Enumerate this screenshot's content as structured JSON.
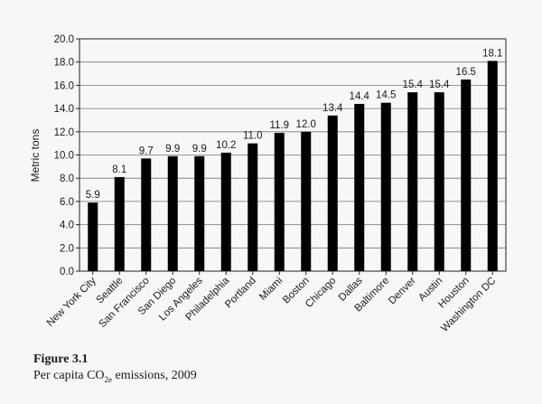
{
  "chart_data": {
    "type": "bar",
    "categories": [
      "New York City",
      "Seattle",
      "San Francisco",
      "San Diego",
      "Los Angeles",
      "Philadelphia",
      "Portland",
      "Miami",
      "Boston",
      "Chicago",
      "Dallas",
      "Baltimore",
      "Denver",
      "Austin",
      "Houston",
      "Washington DC"
    ],
    "values": [
      5.9,
      8.1,
      9.7,
      9.9,
      9.9,
      10.2,
      11.0,
      11.9,
      12.0,
      13.4,
      14.4,
      14.5,
      15.4,
      15.4,
      16.5,
      18.1
    ],
    "data_labels": [
      "5.9",
      "8.1",
      "9.7",
      "9.9",
      "9.9",
      "10.2",
      "11.0",
      "11.9",
      "12.0",
      "13.4",
      "14.4",
      "14.5",
      "15.4",
      "15.4",
      "16.5",
      "18.1"
    ],
    "ylabel": "Metric tons",
    "xlabel": "",
    "ylim": [
      0,
      20
    ],
    "yticks": [
      "0.0",
      "2.0",
      "4.0",
      "6.0",
      "8.0",
      "10.0",
      "12.0",
      "14.0",
      "16.0",
      "18.0",
      "20.0"
    ],
    "grid": true,
    "legend": "none",
    "bar_color": "#000000"
  },
  "caption": {
    "figure_label": "Figure 3.1",
    "text_before": "Per capita CO",
    "text_subscript": "2e",
    "text_after": " emissions, 2009"
  }
}
